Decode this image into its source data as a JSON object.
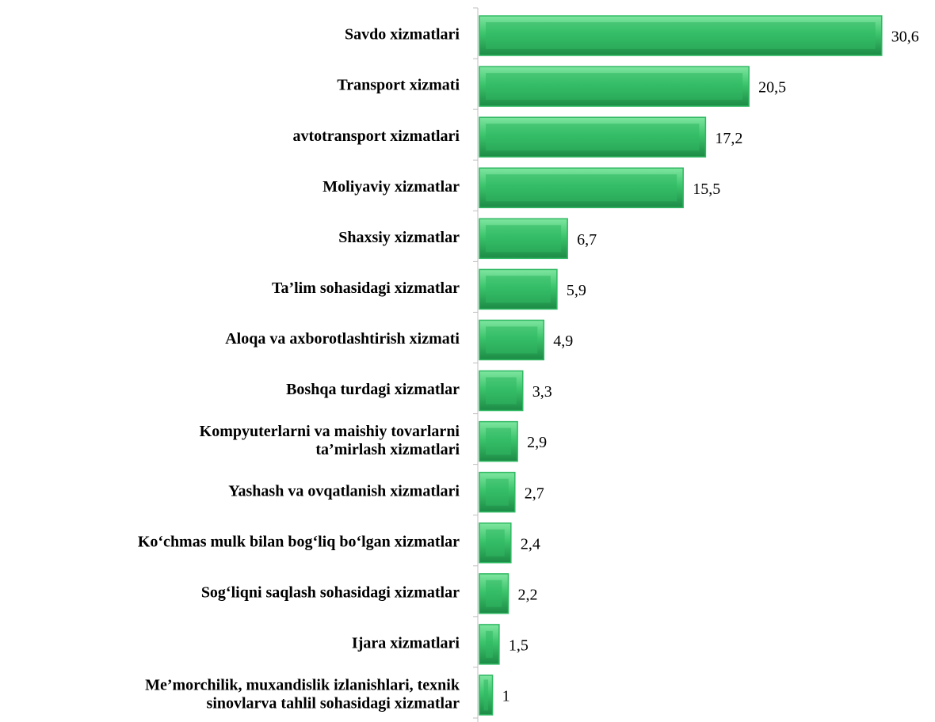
{
  "chart_data": {
    "type": "bar",
    "orientation": "horizontal",
    "categories": [
      "Savdo xizmatlari",
      "Transport xizmati",
      "avtotransport xizmatlari",
      "Moliyaviy xizmatlar",
      "Shaxsiy xizmatlar",
      "Ta’lim sohasidagi xizmatlar",
      "Aloqa va axborotlashtirish xizmati",
      "Boshqa turdagi xizmatlar",
      "Kompyuterlarni va maishiy tovarlarni\nta’mirlash xizmatlari",
      "Yashash va ovqatlanish xizmatlari",
      "Ko‘chmas mulk bilan bog‘liq bo‘lgan xizmatlar",
      "Sog‘liqni saqlash sohasidagi xizmatlar",
      "Ijara xizmatlari",
      "Me’morchilik, muxandislik izlanishlari, texnik\nsinovlarva tahlil sohasidagi xizmatlar"
    ],
    "values": [
      30.6,
      20.5,
      17.2,
      15.5,
      6.7,
      5.9,
      4.9,
      3.3,
      2.9,
      2.7,
      2.4,
      2.2,
      1.5,
      1
    ],
    "value_labels": [
      "30,6",
      "20,5",
      "17,2",
      "15,5",
      "6,7",
      "5,9",
      "4,9",
      "3,3",
      "2,9",
      "2,7",
      "2,4",
      "2,2",
      "1,5",
      "1"
    ],
    "color": "#2fb862",
    "xlim": [
      0,
      32
    ]
  }
}
